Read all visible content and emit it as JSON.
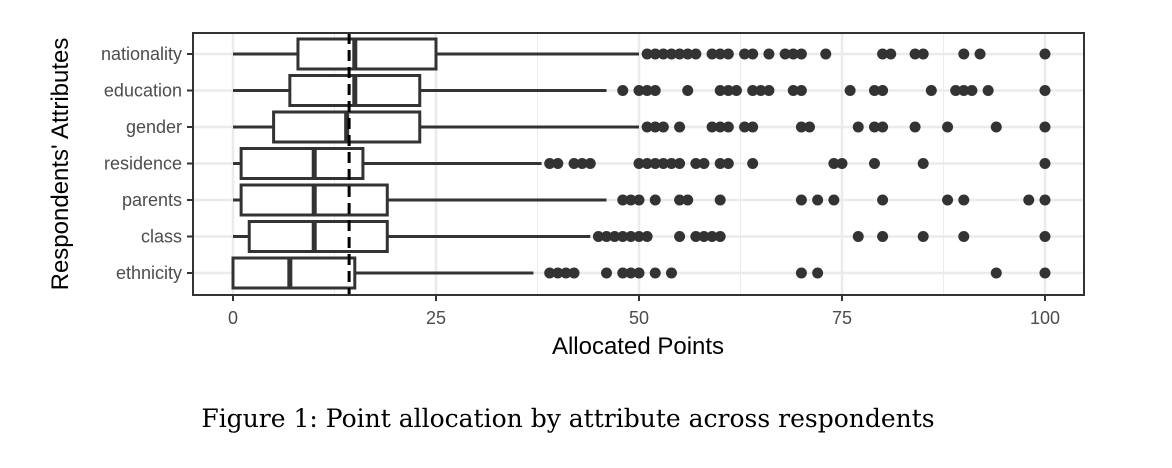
{
  "chart_data": {
    "type": "boxplot",
    "orientation": "horizontal",
    "xlabel": "Allocated Points",
    "ylabel": "Respondents' Attributes",
    "xlim": [
      -5,
      105
    ],
    "xticks": [
      0,
      25,
      50,
      75,
      100
    ],
    "xtick_labels": [
      "0",
      "25",
      "50",
      "75",
      "100"
    ],
    "grid": true,
    "reference_line": {
      "style": "dashed",
      "value": 14.3
    },
    "categories": [
      "nationality",
      "education",
      "gender",
      "residence",
      "parents",
      "class",
      "ethnicity"
    ],
    "series": [
      {
        "name": "nationality",
        "whisker_low": 0,
        "q1": 8,
        "median": 15,
        "q3": 25,
        "whisker_high": 50,
        "outliers": [
          51,
          52,
          53,
          54,
          55,
          56,
          57,
          59,
          60,
          61,
          63,
          64,
          66,
          68,
          69,
          70,
          73,
          80,
          81,
          84,
          85,
          90,
          92,
          100
        ]
      },
      {
        "name": "education",
        "whisker_low": 0,
        "q1": 7,
        "median": 15,
        "q3": 23,
        "whisker_high": 46,
        "outliers": [
          48,
          50,
          51,
          52,
          56,
          60,
          61,
          62,
          64,
          65,
          66,
          69,
          70,
          76,
          79,
          80,
          86,
          89,
          90,
          91,
          93,
          100
        ]
      },
      {
        "name": "gender",
        "whisker_low": 0,
        "q1": 5,
        "median": 14,
        "q3": 23,
        "whisker_high": 50,
        "outliers": [
          51,
          52,
          53,
          55,
          59,
          60,
          61,
          63,
          64,
          70,
          71,
          77,
          79,
          80,
          84,
          88,
          94,
          100
        ]
      },
      {
        "name": "residence",
        "whisker_low": 0,
        "q1": 1,
        "median": 10,
        "q3": 16,
        "whisker_high": 38,
        "outliers": [
          39,
          40,
          42,
          43,
          44,
          50,
          51,
          52,
          53,
          54,
          55,
          57,
          58,
          60,
          61,
          64,
          74,
          75,
          79,
          85,
          100
        ]
      },
      {
        "name": "parents",
        "whisker_low": 0,
        "q1": 1,
        "median": 10,
        "q3": 19,
        "whisker_high": 46,
        "outliers": [
          48,
          49,
          50,
          52,
          55,
          56,
          60,
          70,
          72,
          74,
          80,
          88,
          90,
          98,
          100
        ]
      },
      {
        "name": "class",
        "whisker_low": 0,
        "q1": 2,
        "median": 10,
        "q3": 19,
        "whisker_high": 44,
        "outliers": [
          45,
          46,
          47,
          48,
          49,
          50,
          51,
          55,
          57,
          58,
          59,
          60,
          77,
          80,
          85,
          90,
          100
        ]
      },
      {
        "name": "ethnicity",
        "whisker_low": 0,
        "q1": 0,
        "median": 7,
        "q3": 15,
        "whisker_high": 37,
        "outliers": [
          39,
          40,
          41,
          42,
          46,
          48,
          49,
          50,
          52,
          54,
          70,
          72,
          94,
          100
        ]
      }
    ]
  },
  "caption": "Figure 1: Point allocation by attribute across respondents"
}
